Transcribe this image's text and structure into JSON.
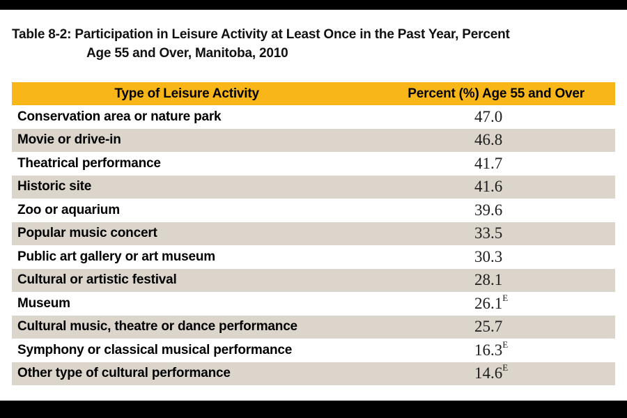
{
  "title": {
    "line1": "Table 8-2: Participation in Leisure Activity at Least Once in the Past Year, Percent",
    "line2": "Age 55 and Over, Manitoba, 2010"
  },
  "table": {
    "column_headers": [
      "Type of Leisure Activity",
      "Percent (%) Age 55 and Over"
    ],
    "rows": [
      {
        "activity": "Conservation area or nature park",
        "value": "47.0",
        "flag": ""
      },
      {
        "activity": "Movie or drive-in",
        "value": "46.8",
        "flag": ""
      },
      {
        "activity": "Theatrical performance",
        "value": "41.7",
        "flag": ""
      },
      {
        "activity": "Historic site",
        "value": "41.6",
        "flag": ""
      },
      {
        "activity": "Zoo or aquarium",
        "value": "39.6",
        "flag": ""
      },
      {
        "activity": "Popular music concert",
        "value": "33.5",
        "flag": ""
      },
      {
        "activity": "Public art gallery or art museum",
        "value": "30.3",
        "flag": ""
      },
      {
        "activity": "Cultural or artistic festival",
        "value": "28.1",
        "flag": ""
      },
      {
        "activity": "Museum",
        "value": "26.1",
        "flag": "E"
      },
      {
        "activity": "Cultural music, theatre or dance performance",
        "value": "25.7",
        "flag": ""
      },
      {
        "activity": "Symphony or classical musical performance",
        "value": "16.3",
        "flag": "E"
      },
      {
        "activity": "Other type of cultural performance",
        "value": "14.6",
        "flag": "E"
      }
    ]
  },
  "colors": {
    "header_gold": "#F9B618",
    "row_alt_gray": "#DCD5CC",
    "frame_black": "#000000"
  },
  "chart_data": {
    "type": "table",
    "title": "Table 8-2: Participation in Leisure Activity at Least Once in the Past Year, Percent Age 55 and Over, Manitoba, 2010",
    "categories": [
      "Conservation area or nature park",
      "Movie or drive-in",
      "Theatrical performance",
      "Historic site",
      "Zoo or aquarium",
      "Popular music concert",
      "Public art gallery or art museum",
      "Cultural or artistic festival",
      "Museum",
      "Cultural music, theatre or dance performance",
      "Symphony or classical musical performance",
      "Other type of cultural performance"
    ],
    "values": [
      47.0,
      46.8,
      41.7,
      41.6,
      39.6,
      33.5,
      30.3,
      28.1,
      26.1,
      25.7,
      16.3,
      14.6
    ],
    "estimate_flags": [
      "",
      "",
      "",
      "",
      "",
      "",
      "",
      "",
      "E",
      "",
      "E",
      "E"
    ],
    "xlabel": "Type of Leisure Activity",
    "ylabel": "Percent (%) Age 55 and Over"
  }
}
